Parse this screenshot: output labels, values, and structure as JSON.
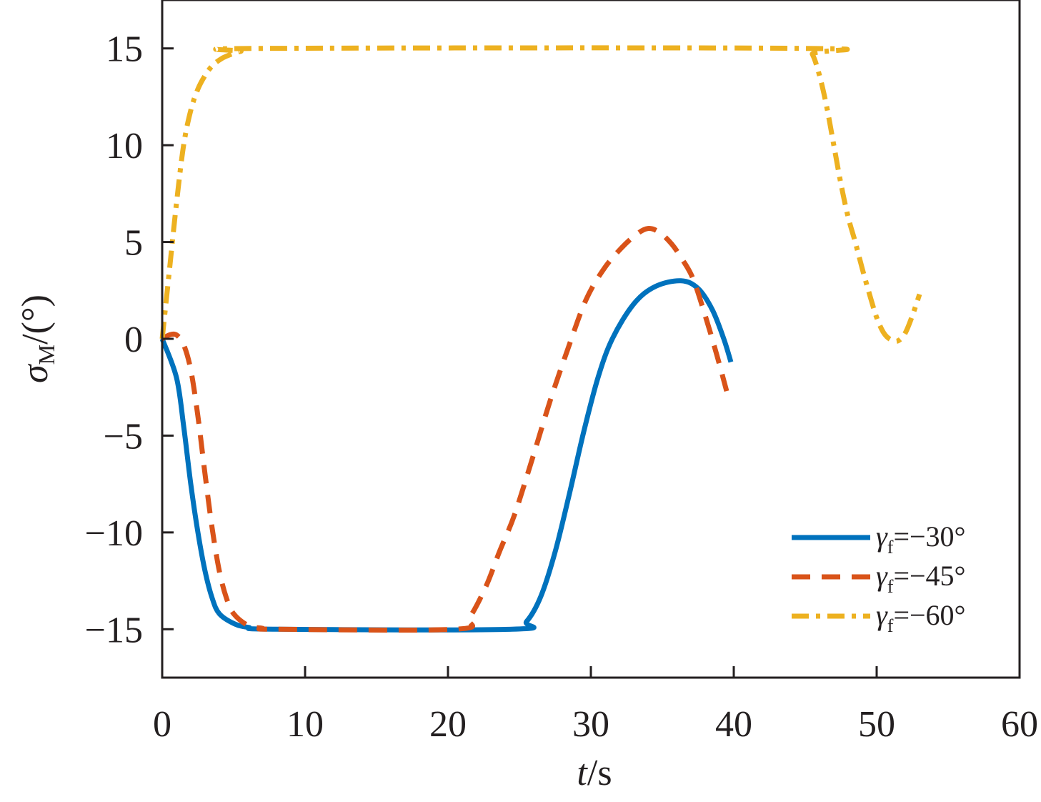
{
  "chart_data": {
    "type": "line",
    "title": "",
    "xlabel": {
      "italic": "t",
      "rest": "/s"
    },
    "ylabel": {
      "symbol": "σ",
      "subscript": "M",
      "rest": "/(°)"
    },
    "xlim": [
      0,
      60
    ],
    "ylim": [
      -17.5,
      17.5
    ],
    "xticks": [
      0,
      10,
      20,
      30,
      40,
      50,
      60
    ],
    "xtick_labels": [
      "0",
      "10",
      "20",
      "30",
      "40",
      "50",
      "60"
    ],
    "yticks": [
      15,
      10,
      5,
      0,
      -5,
      -10,
      -15
    ],
    "ytick_labels": [
      "15",
      "10",
      "5",
      "0",
      "−5",
      "−10",
      "−15"
    ],
    "grid": false,
    "legend_position": "bottom-right",
    "series": [
      {
        "name": "γf=−30°",
        "legend": {
          "symbol": "γ",
          "subscript": "f",
          "rest": "=−30°"
        },
        "color": "#0072BD",
        "style": "solid",
        "x": [
          0,
          1,
          1.5,
          2,
          2.5,
          3,
          3.5,
          4,
          5,
          6,
          8,
          24.5,
          25.5,
          26.5,
          27.5,
          28.5,
          29.5,
          30.5,
          31.5,
          33,
          34.5,
          36.3,
          37.5,
          38.5,
          39.3,
          39.8
        ],
        "y": [
          0,
          -2,
          -4.5,
          -7.5,
          -10,
          -12,
          -13.4,
          -14.2,
          -14.7,
          -14.9,
          -15,
          -15,
          -14.6,
          -13.3,
          -11,
          -8,
          -4.8,
          -2,
          0,
          1.8,
          2.7,
          3,
          2.6,
          1.5,
          0,
          -1.2
        ]
      },
      {
        "name": "γf=−45°",
        "legend": {
          "symbol": "γ",
          "subscript": "f",
          "rest": "=−45°"
        },
        "color": "#D95319",
        "style": "dashed",
        "x": [
          0,
          0.5,
          1,
          1.5,
          2,
          2.5,
          3,
          3.5,
          4,
          4.5,
          5,
          6,
          7,
          8,
          20.5,
          21.5,
          22.65,
          23.6,
          24.65,
          25.9,
          27.15,
          28.4,
          29.65,
          30.9,
          32.15,
          33.2,
          34,
          34.8,
          35.65,
          36.4,
          37.15,
          38,
          38.8,
          39.5
        ],
        "y": [
          0,
          0.2,
          0.2,
          -0.3,
          -1.6,
          -4,
          -7,
          -9.8,
          -12,
          -13.4,
          -14.2,
          -14.8,
          -14.95,
          -15,
          -15,
          -14.4,
          -12.8,
          -11,
          -9.1,
          -6.2,
          -3.2,
          -0.5,
          2,
          3.6,
          4.7,
          5.4,
          5.7,
          5.5,
          4.9,
          4.1,
          3.1,
          1.2,
          -0.8,
          -2.7
        ]
      },
      {
        "name": "γf=−60°",
        "legend": {
          "symbol": "γ",
          "subscript": "f",
          "rest": "=−60°"
        },
        "color": "#EDB120",
        "style": "dashdot",
        "x": [
          0,
          0.5,
          1,
          1.5,
          2,
          2.5,
          3,
          3.5,
          4,
          4.5,
          5.5,
          7,
          45,
          45.5,
          46,
          46.5,
          47,
          47.5,
          48,
          48.5,
          49,
          49.5,
          50,
          50.5,
          51,
          51.5,
          52,
          52.5,
          53
        ],
        "y": [
          0,
          3.5,
          7,
          10,
          11.8,
          12.9,
          13.6,
          14.1,
          14.4,
          14.6,
          14.85,
          15,
          15,
          14.7,
          13.6,
          12,
          10,
          8,
          6.3,
          5,
          3.6,
          2.3,
          1.1,
          0.3,
          -0.05,
          -0.1,
          0.3,
          1.2,
          2.3
        ]
      }
    ]
  }
}
